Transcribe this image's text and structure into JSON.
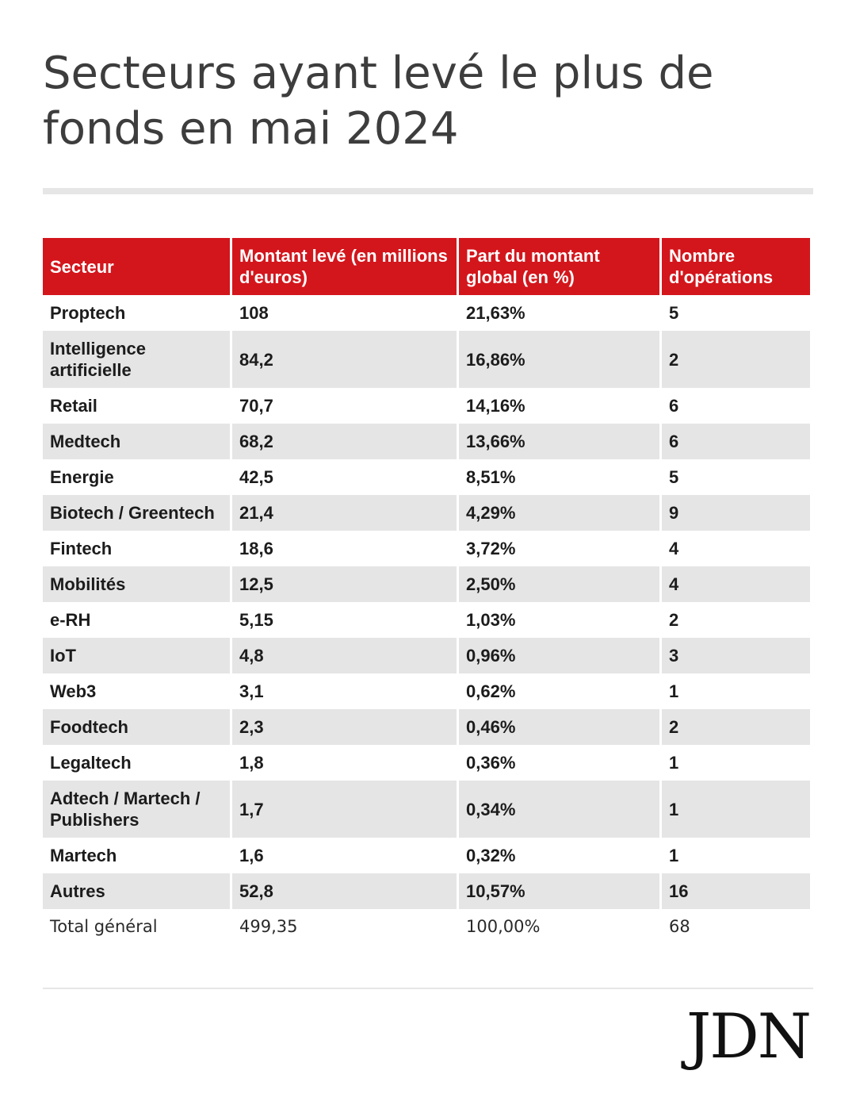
{
  "title": "Secteurs ayant levé le plus de fonds en mai 2024",
  "logo": "JDN",
  "colors": {
    "header_bg": "#d3161c",
    "row_shade": "#e5e5e5"
  },
  "chart_data": {
    "type": "table",
    "title": "Secteurs ayant levé le plus de fonds en mai 2024",
    "columns": [
      "Secteur",
      "Montant levé (en millions d'euros)",
      "Part du montant global (en %)",
      "Nombre d'opérations"
    ],
    "rows": [
      [
        "Proptech",
        "108",
        "21,63%",
        "5"
      ],
      [
        "Intelligence artificielle",
        "84,2",
        "16,86%",
        "2"
      ],
      [
        "Retail",
        "70,7",
        "14,16%",
        "6"
      ],
      [
        "Medtech",
        "68,2",
        "13,66%",
        "6"
      ],
      [
        "Energie",
        "42,5",
        "8,51%",
        "5"
      ],
      [
        "Biotech / Greentech",
        "21,4",
        "4,29%",
        "9"
      ],
      [
        "Fintech",
        "18,6",
        "3,72%",
        "4"
      ],
      [
        "Mobilités",
        "12,5",
        "2,50%",
        "4"
      ],
      [
        "e-RH",
        "5,15",
        "1,03%",
        "2"
      ],
      [
        "IoT",
        "4,8",
        "0,96%",
        "3"
      ],
      [
        "Web3",
        "3,1",
        "0,62%",
        "1"
      ],
      [
        "Foodtech",
        "2,3",
        "0,46%",
        "2"
      ],
      [
        "Legaltech",
        "1,8",
        "0,36%",
        "1"
      ],
      [
        "Adtech / Martech / Publishers",
        "1,7",
        "0,34%",
        "1"
      ],
      [
        "Martech",
        "1,6",
        "0,32%",
        "1"
      ],
      [
        "Autres",
        "52,8",
        "10,57%",
        "16"
      ]
    ],
    "total": [
      "Total général",
      "499,35",
      "100,00%",
      "68"
    ]
  }
}
